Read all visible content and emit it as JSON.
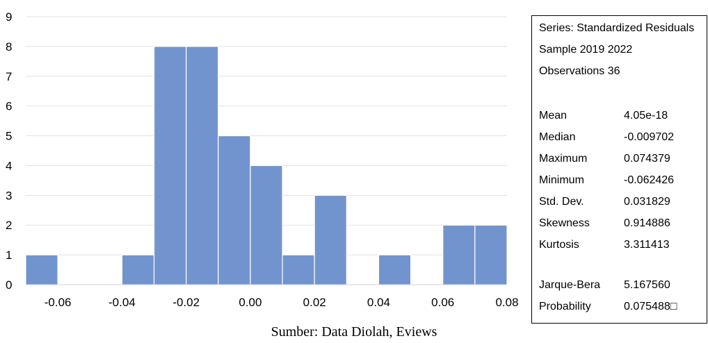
{
  "chart_data": {
    "type": "bar",
    "bin_edges": [
      -0.07,
      -0.06,
      -0.05,
      -0.04,
      -0.03,
      -0.02,
      -0.01,
      0.0,
      0.01,
      0.02,
      0.03,
      0.04,
      0.05,
      0.06,
      0.07,
      0.08
    ],
    "values": [
      1,
      0,
      0,
      1,
      8,
      8,
      5,
      4,
      1,
      3,
      0,
      1,
      0,
      2,
      2
    ],
    "xlim": [
      -0.07,
      0.08
    ],
    "ylim": [
      0,
      9
    ],
    "x_ticks": [
      "-0.06",
      "-0.04",
      "-0.02",
      "0.00",
      "0.02",
      "0.04",
      "0.06",
      "0.08"
    ],
    "y_ticks": [
      "0",
      "1",
      "2",
      "3",
      "4",
      "5",
      "6",
      "7",
      "8",
      "9"
    ],
    "bar_color": "#7294CE",
    "grid": true
  },
  "stats": {
    "header": [
      "Series: Standardized Residuals",
      "Sample 2019 2022",
      "Observations 36"
    ],
    "rows": [
      {
        "label": "Mean",
        "value": "4.05e-18"
      },
      {
        "label": "Median",
        "value": "-0.009702"
      },
      {
        "label": "Maximum",
        "value": "0.074379"
      },
      {
        "label": "Minimum",
        "value": "-0.062426"
      },
      {
        "label": "Std. Dev.",
        "value": "0.031829"
      },
      {
        "label": "Skewness",
        "value": "0.914886"
      },
      {
        "label": "Kurtosis",
        "value": "3.311413"
      }
    ],
    "tests": [
      {
        "label": "Jarque-Bera",
        "value": "5.167560"
      },
      {
        "label": "Probability",
        "value": "0.075488□"
      }
    ]
  },
  "caption": "Sumber: Data Diolah, Eviews"
}
